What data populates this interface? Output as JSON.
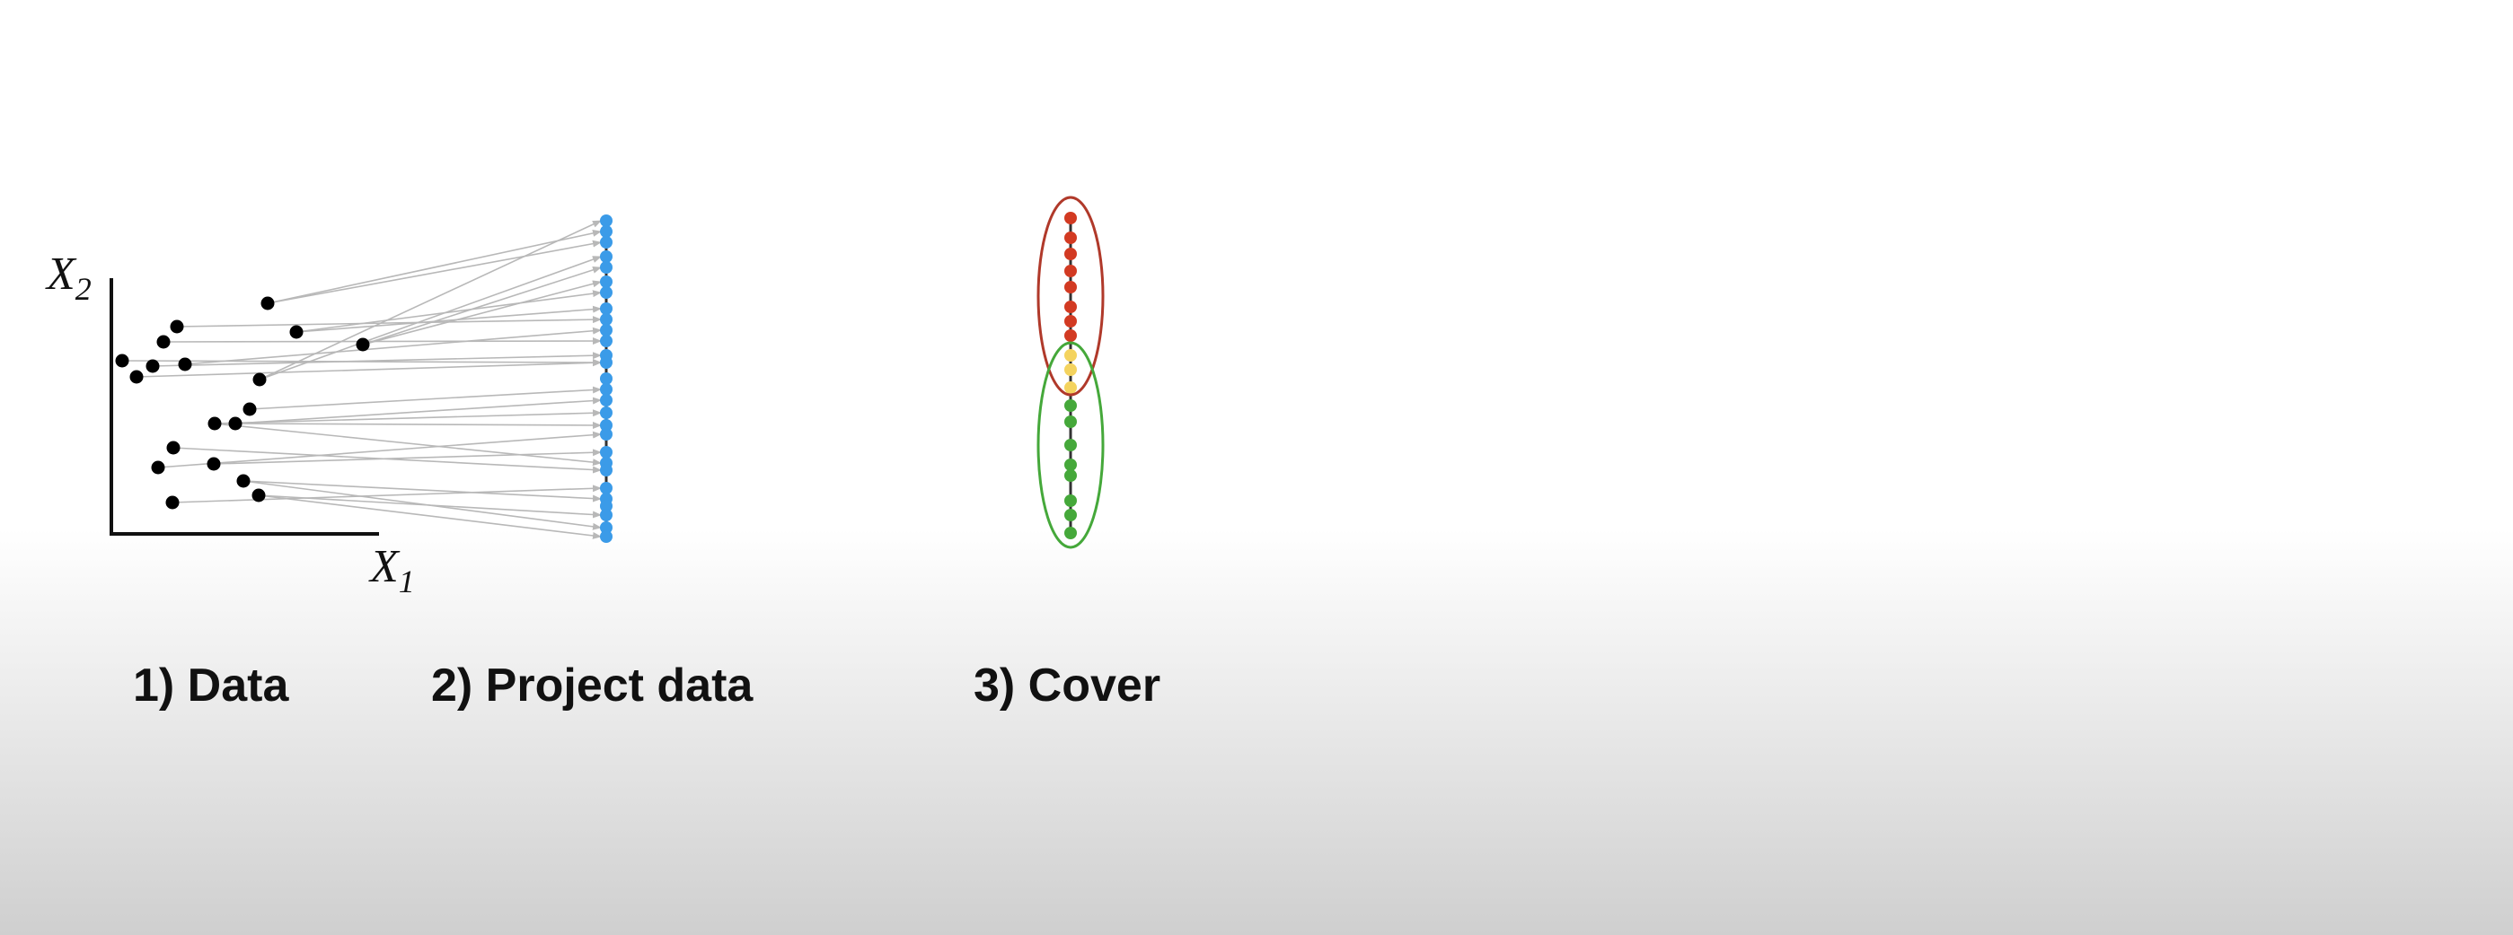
{
  "axes": {
    "x_label_main": "X",
    "x_label_sub": "1",
    "y_label_main": "X",
    "y_label_sub": "2"
  },
  "steps": [
    {
      "label": "1) Data"
    },
    {
      "label": "2) Project data"
    },
    {
      "label": "3) Cover"
    }
  ],
  "colors": {
    "data_point": "#000000",
    "projected_point": "#3b9be8",
    "projection_arrow": "#b8b8b8",
    "cover_top": "#d23a22",
    "cover_bottom": "#45a83a",
    "cover_overlap": "#f4d35e",
    "cover_top_ring": "#b0392a",
    "cover_bottom_ring": "#45a83a"
  }
}
